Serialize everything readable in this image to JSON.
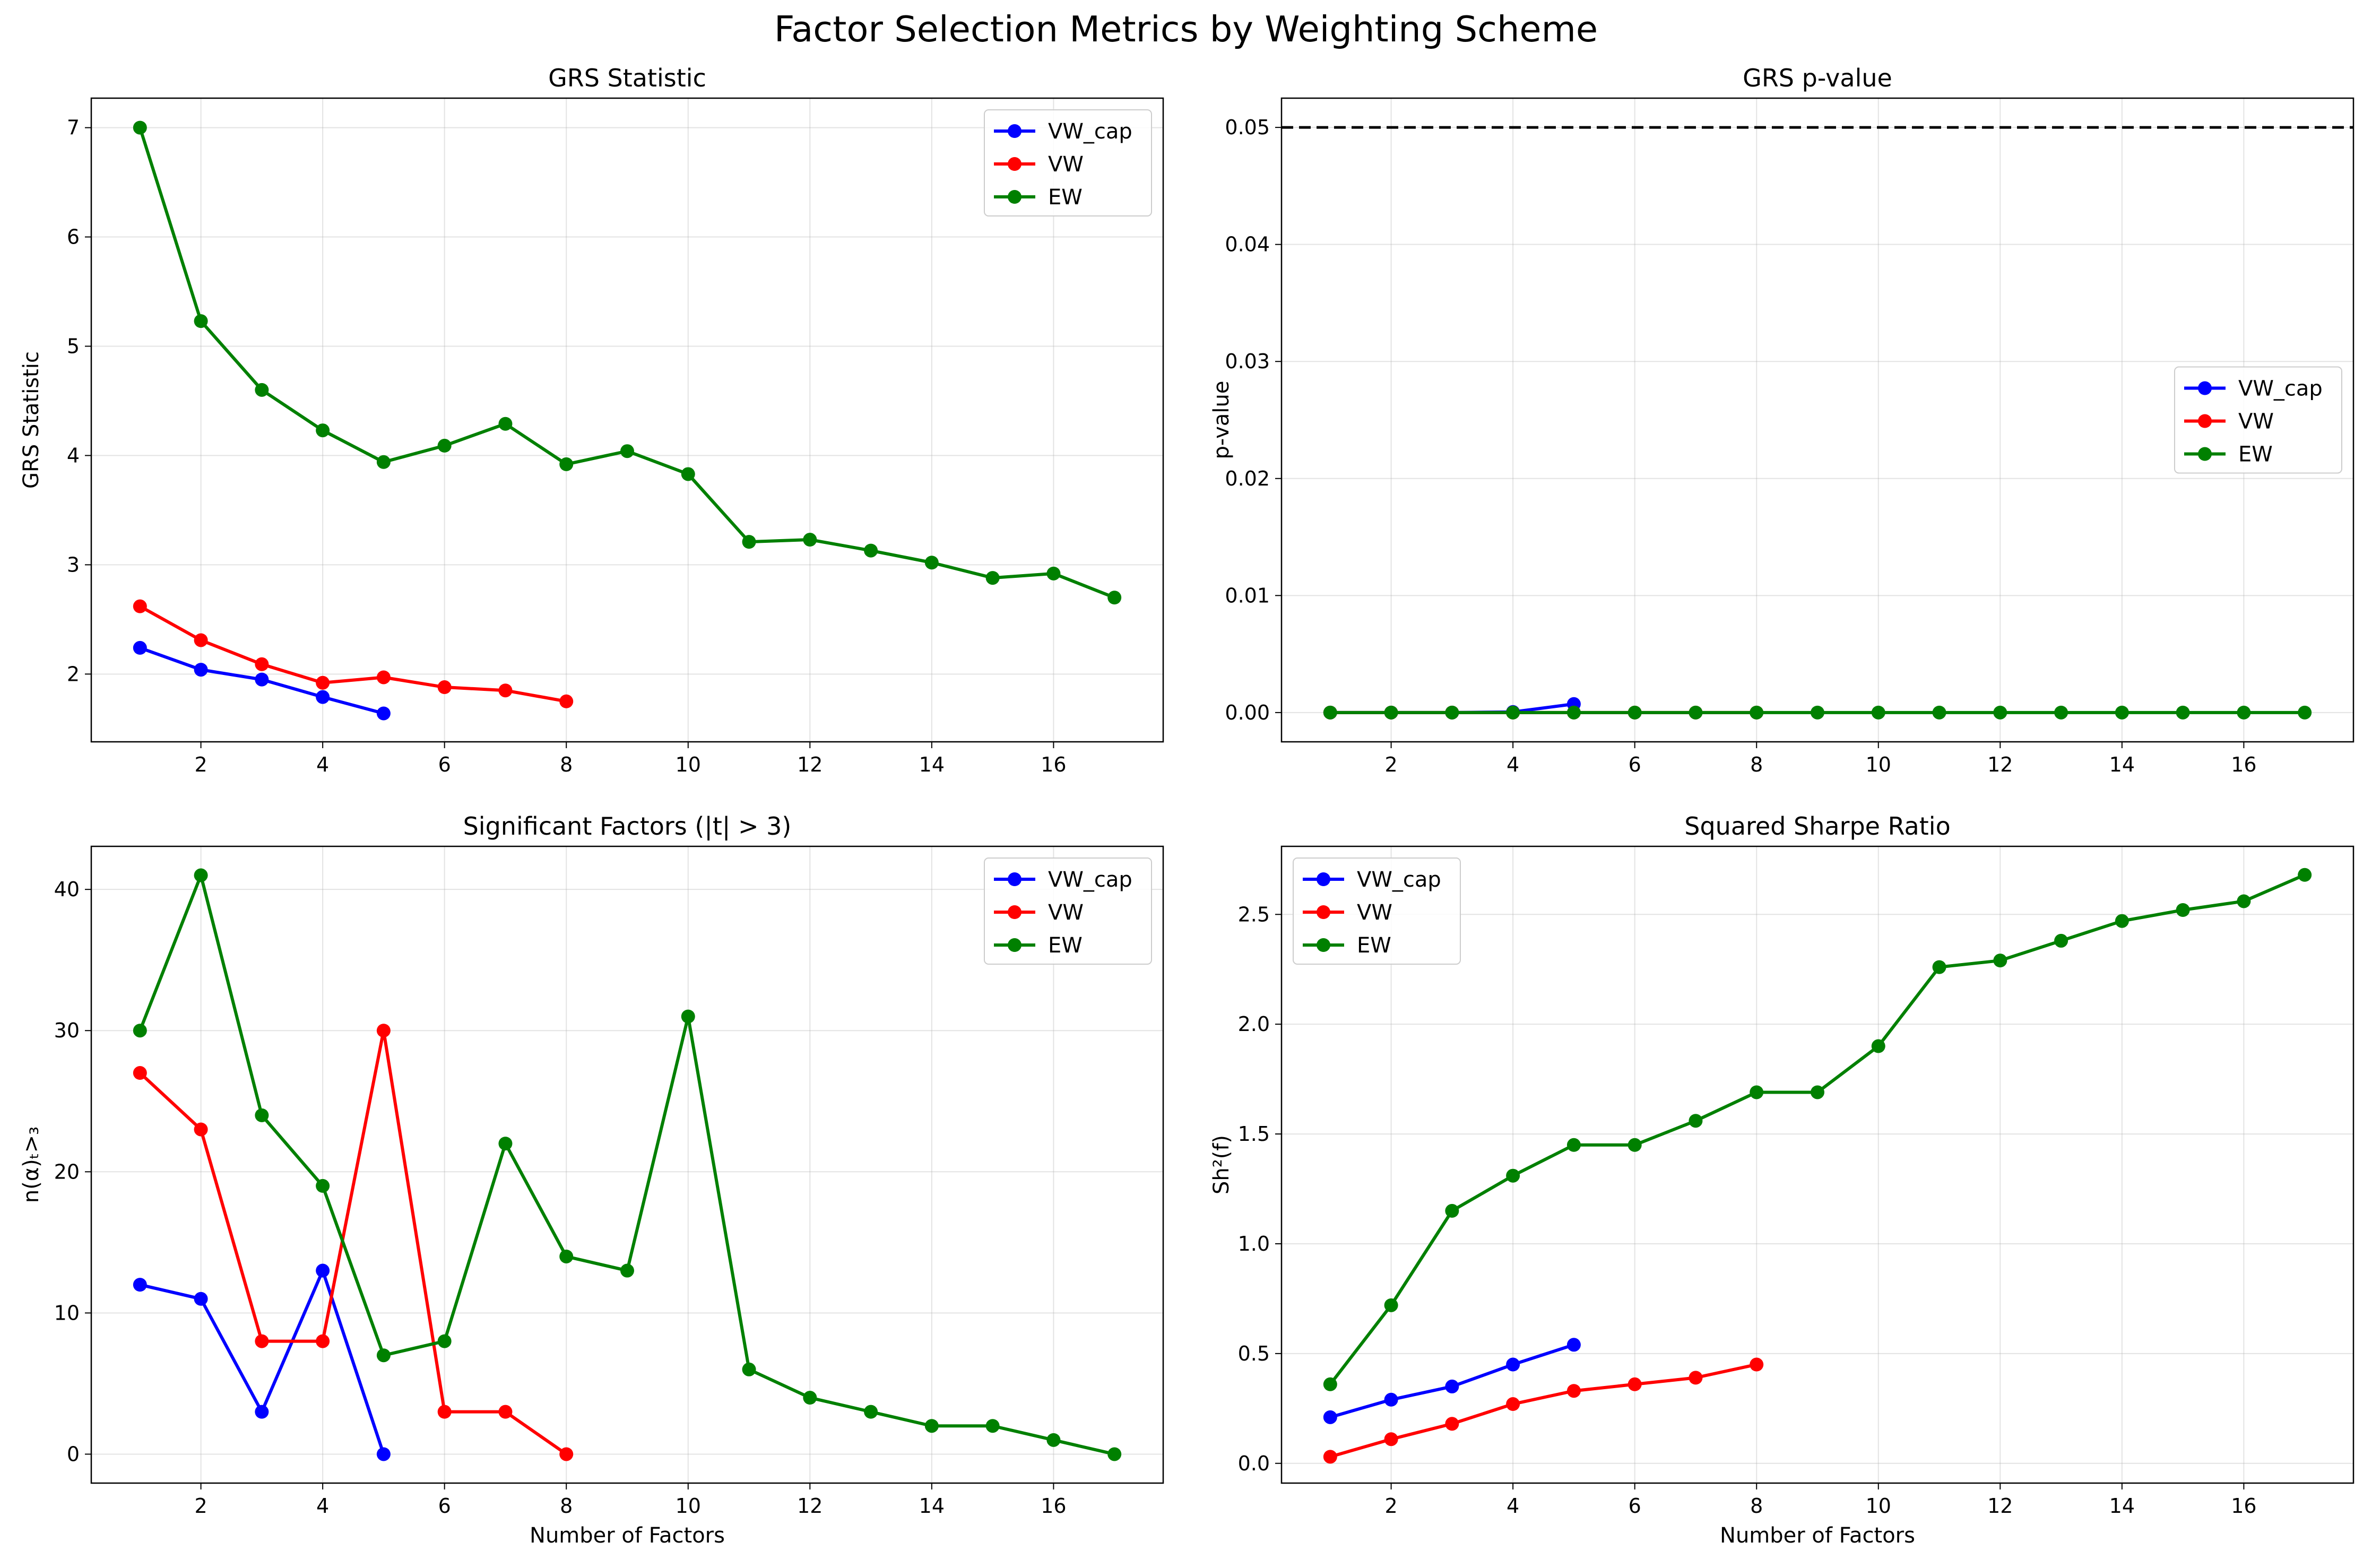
{
  "figure_title": "Factor Selection Metrics by Weighting Scheme",
  "legend_labels": [
    "VW_cap",
    "VW",
    "EW"
  ],
  "colors": {
    "VW_cap": "#0000ff",
    "VW": "#ff0000",
    "EW": "#008000",
    "threshold": "#000000",
    "grid": "#b0b0b0"
  },
  "chart_data": [
    {
      "type": "line",
      "title": "GRS Statistic",
      "xlabel": "",
      "ylabel": "GRS Statistic",
      "xlim": [
        0.2,
        17.8
      ],
      "ylim": [
        1.38,
        7.27
      ],
      "xticks": [
        2,
        4,
        6,
        8,
        10,
        12,
        14,
        16
      ],
      "yticks": [
        2,
        3,
        4,
        5,
        6,
        7
      ],
      "ytick_labels": [
        "2",
        "3",
        "4",
        "5",
        "6",
        "7"
      ],
      "legend": "upper right",
      "grid": true,
      "series": [
        {
          "name": "VW_cap",
          "x": [
            1,
            2,
            3,
            4,
            5
          ],
          "y": [
            2.24,
            2.04,
            1.95,
            1.79,
            1.64
          ]
        },
        {
          "name": "VW",
          "x": [
            1,
            2,
            3,
            4,
            5,
            6,
            7,
            8
          ],
          "y": [
            2.62,
            2.31,
            2.09,
            1.92,
            1.97,
            1.88,
            1.85,
            1.75
          ]
        },
        {
          "name": "EW",
          "x": [
            1,
            2,
            3,
            4,
            5,
            6,
            7,
            8,
            9,
            10,
            11,
            12,
            13,
            14,
            15,
            16,
            17
          ],
          "y": [
            7.0,
            5.23,
            4.6,
            4.23,
            3.94,
            4.09,
            4.29,
            3.92,
            4.04,
            3.83,
            3.21,
            3.23,
            3.13,
            3.02,
            2.88,
            2.92,
            2.7
          ]
        }
      ]
    },
    {
      "type": "line",
      "title": "GRS p-value",
      "xlabel": "",
      "ylabel": "p-value",
      "xlim": [
        0.2,
        17.8
      ],
      "ylim": [
        -0.0025,
        0.0525
      ],
      "xticks": [
        2,
        4,
        6,
        8,
        10,
        12,
        14,
        16
      ],
      "yticks": [
        0,
        0.01,
        0.02,
        0.03,
        0.04,
        0.05
      ],
      "ytick_labels": [
        "0.00",
        "0.01",
        "0.02",
        "0.03",
        "0.04",
        "0.05"
      ],
      "hline": 0.05,
      "legend": "center right",
      "grid": true,
      "series": [
        {
          "name": "VW_cap",
          "x": [
            1,
            2,
            3,
            4,
            5
          ],
          "y": [
            0.0,
            0.0,
            0.0,
            5e-05,
            0.00073
          ]
        },
        {
          "name": "VW",
          "x": [
            1,
            2,
            3,
            4,
            5,
            6,
            7,
            8
          ],
          "y": [
            0,
            0,
            0,
            0,
            0,
            0,
            0,
            0
          ]
        },
        {
          "name": "EW",
          "x": [
            1,
            2,
            3,
            4,
            5,
            6,
            7,
            8,
            9,
            10,
            11,
            12,
            13,
            14,
            15,
            16,
            17
          ],
          "y": [
            0,
            0,
            0,
            0,
            0,
            0,
            0,
            0,
            0,
            0,
            0,
            0,
            0,
            0,
            0,
            0,
            0
          ]
        }
      ]
    },
    {
      "type": "line",
      "title": "Significant Factors (|t| > 3)",
      "xlabel": "Number of Factors",
      "ylabel": "n(α)ₜ>₃",
      "xlim": [
        0.2,
        17.8
      ],
      "ylim": [
        -2.05,
        43.05
      ],
      "xticks": [
        2,
        4,
        6,
        8,
        10,
        12,
        14,
        16
      ],
      "yticks": [
        0,
        10,
        20,
        30,
        40
      ],
      "ytick_labels": [
        "0",
        "10",
        "20",
        "30",
        "40"
      ],
      "legend": "upper right",
      "grid": true,
      "series": [
        {
          "name": "VW_cap",
          "x": [
            1,
            2,
            3,
            4,
            5
          ],
          "y": [
            12,
            11,
            3,
            13,
            0
          ]
        },
        {
          "name": "VW",
          "x": [
            1,
            2,
            3,
            4,
            5,
            6,
            7,
            8
          ],
          "y": [
            27,
            23,
            8,
            8,
            30,
            3,
            3,
            0
          ]
        },
        {
          "name": "EW",
          "x": [
            1,
            2,
            3,
            4,
            5,
            6,
            7,
            8,
            9,
            10,
            11,
            12,
            13,
            14,
            15,
            16,
            17
          ],
          "y": [
            30,
            41,
            24,
            19,
            7,
            8,
            22,
            14,
            13,
            31,
            6,
            4,
            3,
            2,
            2,
            1,
            0
          ]
        }
      ]
    },
    {
      "type": "line",
      "title": "Squared Sharpe Ratio",
      "xlabel": "Number of Factors",
      "ylabel": "Sh²(f)",
      "xlim": [
        0.2,
        17.8
      ],
      "ylim": [
        -0.09,
        2.81
      ],
      "xticks": [
        2,
        4,
        6,
        8,
        10,
        12,
        14,
        16
      ],
      "yticks": [
        0,
        0.5,
        1,
        1.5,
        2,
        2.5
      ],
      "ytick_labels": [
        "0.0",
        "0.5",
        "1.0",
        "1.5",
        "2.0",
        "2.5"
      ],
      "legend": "upper left",
      "grid": true,
      "series": [
        {
          "name": "VW_cap",
          "x": [
            1,
            2,
            3,
            4,
            5
          ],
          "y": [
            0.21,
            0.29,
            0.35,
            0.45,
            0.54
          ]
        },
        {
          "name": "VW",
          "x": [
            1,
            2,
            3,
            4,
            5,
            6,
            7,
            8
          ],
          "y": [
            0.03,
            0.11,
            0.18,
            0.27,
            0.33,
            0.36,
            0.39,
            0.45
          ]
        },
        {
          "name": "EW",
          "x": [
            1,
            2,
            3,
            4,
            5,
            6,
            7,
            8,
            9,
            10,
            11,
            12,
            13,
            14,
            15,
            16,
            17
          ],
          "y": [
            0.36,
            0.72,
            1.15,
            1.31,
            1.45,
            1.45,
            1.56,
            1.69,
            1.69,
            1.9,
            2.26,
            2.29,
            2.38,
            2.47,
            2.52,
            2.56,
            2.68
          ]
        }
      ]
    }
  ]
}
